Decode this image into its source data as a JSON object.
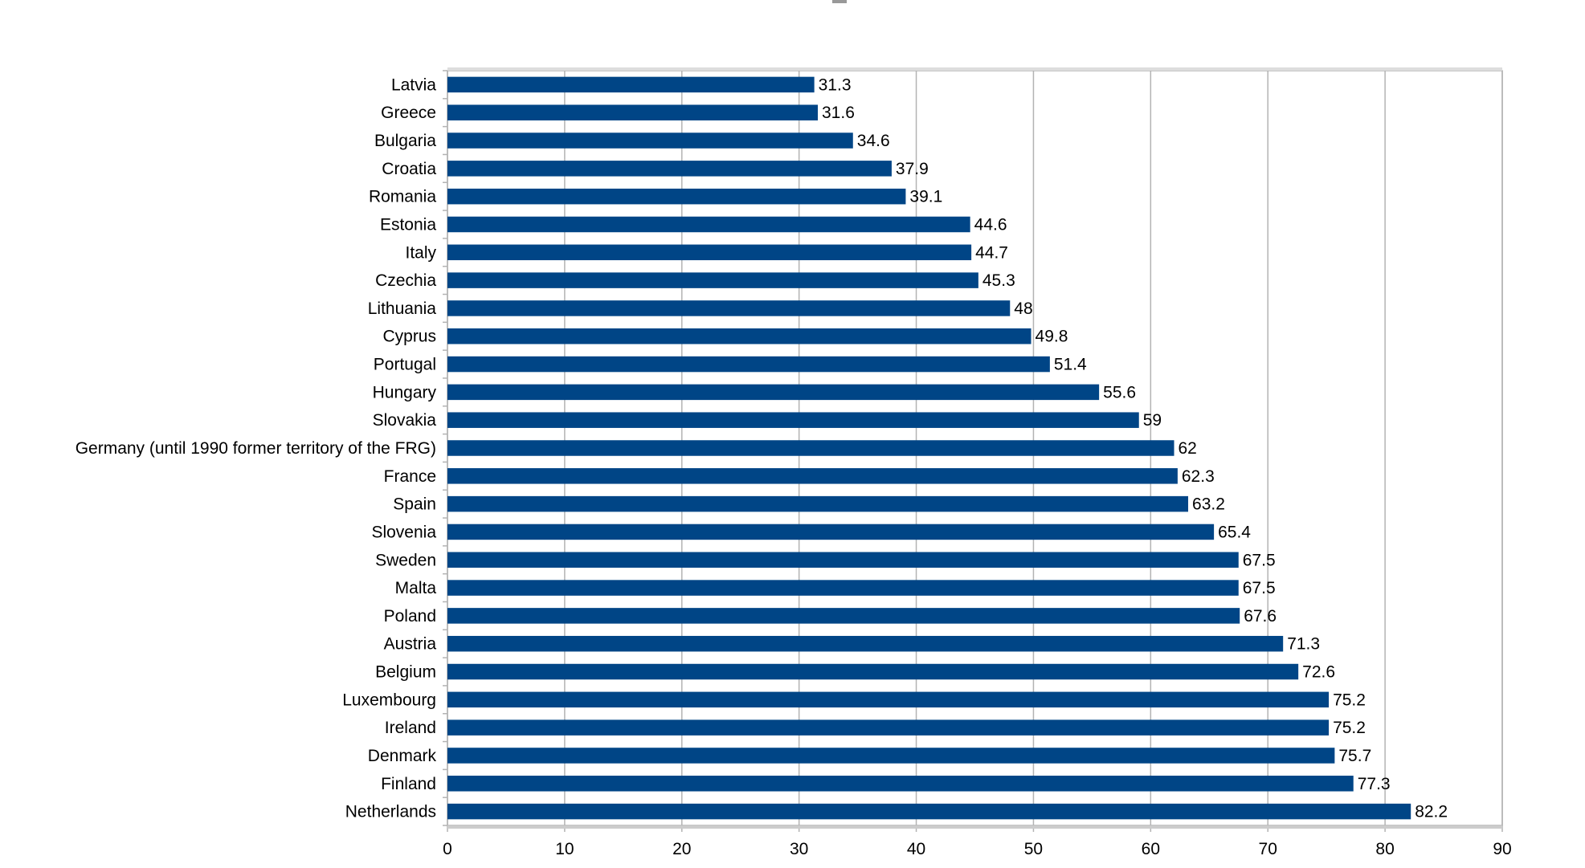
{
  "chart_data": {
    "type": "bar",
    "orientation": "horizontal",
    "title": "",
    "xlabel": "",
    "ylabel": "",
    "xlim": [
      0,
      90
    ],
    "x_ticks": [
      0,
      10,
      20,
      30,
      40,
      50,
      60,
      70,
      80,
      90
    ],
    "grid": true,
    "bar_color": "#004586",
    "categories": [
      "Latvia",
      "Greece",
      "Bulgaria",
      "Croatia",
      "Romania",
      "Estonia",
      "Italy",
      "Czechia",
      "Lithuania",
      "Cyprus",
      "Portugal",
      "Hungary",
      "Slovakia",
      "Germany (until 1990 former territory of the FRG)",
      "France",
      "Spain",
      "Slovenia",
      "Sweden",
      "Malta",
      "Poland",
      "Austria",
      "Belgium",
      "Luxembourg",
      "Ireland",
      "Denmark",
      "Finland",
      "Netherlands"
    ],
    "values": [
      31.3,
      31.6,
      34.6,
      37.9,
      39.1,
      44.6,
      44.7,
      45.3,
      48,
      49.8,
      51.4,
      55.6,
      59,
      62,
      62.3,
      63.2,
      65.4,
      67.5,
      67.5,
      67.6,
      71.3,
      72.6,
      75.2,
      75.2,
      75.7,
      77.3,
      82.2
    ]
  }
}
